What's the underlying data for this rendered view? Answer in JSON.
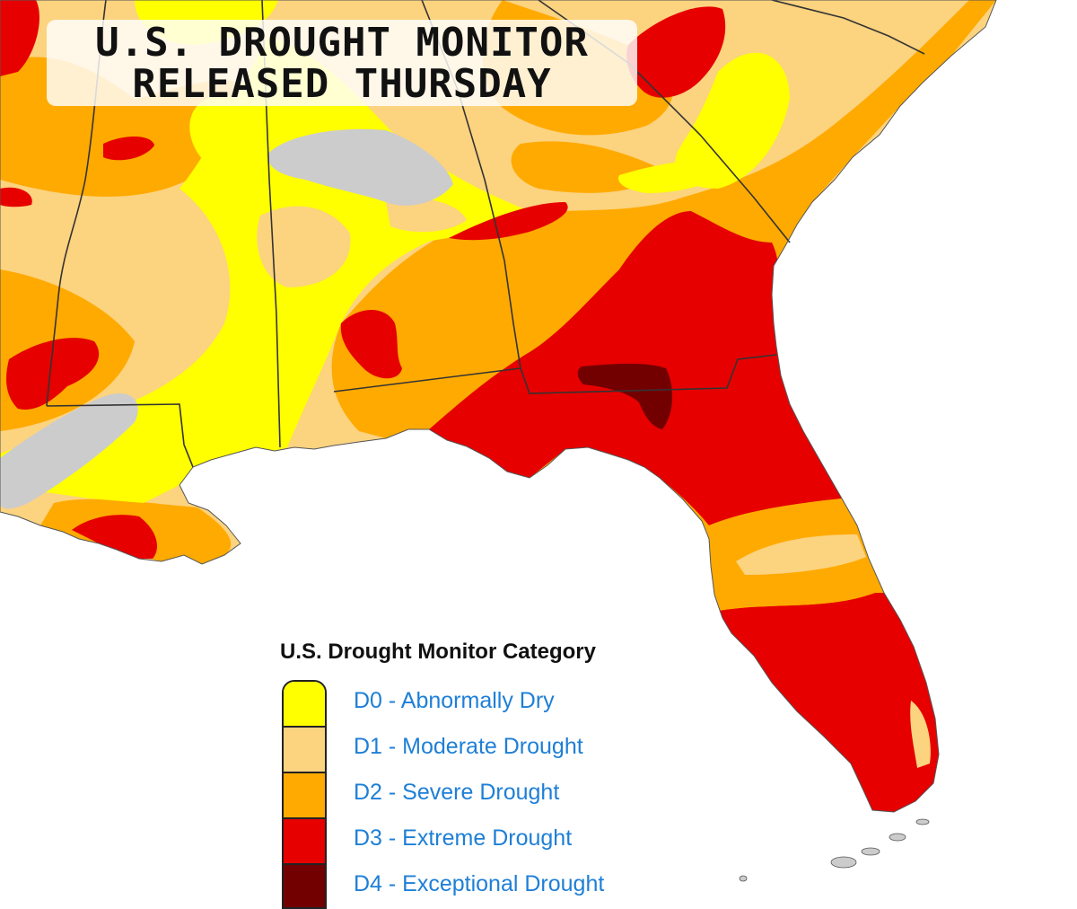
{
  "header": {
    "line1": "U.S. DROUGHT MONITOR",
    "line2": "RELEASED THURSDAY"
  },
  "legend": {
    "title": "U.S. Drought Monitor Category",
    "items": [
      {
        "label": "D0 - Abnormally Dry",
        "color": "#ffff00"
      },
      {
        "label": "D1 - Moderate Drought",
        "color": "#fcd37f"
      },
      {
        "label": "D2 - Severe Drought",
        "color": "#ffaa00"
      },
      {
        "label": "D3 - Extreme Drought",
        "color": "#e60000"
      },
      {
        "label": "D4 - Exceptional Drought",
        "color": "#730000"
      }
    ]
  },
  "colors": {
    "no_data": "#cccccc",
    "border": "#333333",
    "water": "#ffffff"
  }
}
